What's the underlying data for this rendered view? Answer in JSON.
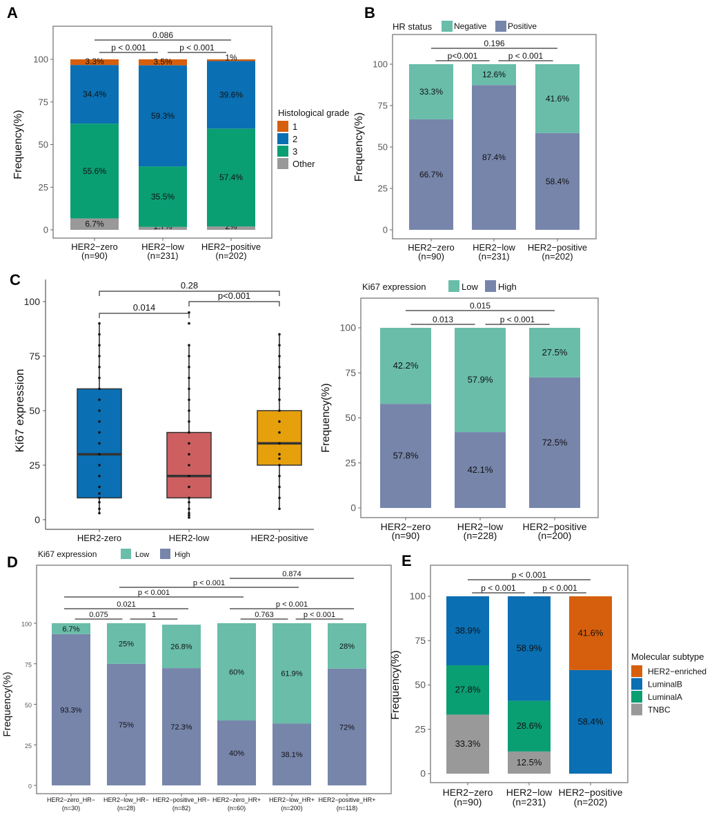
{
  "panels": {
    "A": {
      "letter": "A"
    },
    "B": {
      "letter": "B"
    },
    "C": {
      "letter": "C"
    },
    "D": {
      "letter": "D"
    },
    "E": {
      "letter": "E"
    }
  },
  "chart_data": [
    {
      "id": "A",
      "type": "bar",
      "stacked": true,
      "title": "",
      "xlabel": "",
      "ylabel": "Frequency(%)",
      "ylim": [
        0,
        100
      ],
      "yticks": [
        0,
        25,
        50,
        75,
        100
      ],
      "categories": [
        "HER2−zero",
        "HER2−low",
        "HER2−positive"
      ],
      "category_n": [
        "(n=90)",
        "(n=231)",
        "(n=202)"
      ],
      "legend_title": "Histological grade",
      "legend_position": "right",
      "series": [
        {
          "name": "Other",
          "color": "#999999",
          "values": [
            6.7,
            1.7,
            2.0
          ],
          "labels": [
            "6.7%",
            "1.7%",
            "2%"
          ]
        },
        {
          "name": "3",
          "color": "#0a9e73",
          "values": [
            55.6,
            35.5,
            57.4
          ],
          "labels": [
            "55.6%",
            "35.5%",
            "57.4%"
          ]
        },
        {
          "name": "2",
          "color": "#0a6fb3",
          "values": [
            34.4,
            59.3,
            39.6
          ],
          "labels": [
            "34.4%",
            "59.3%",
            "39.6%"
          ]
        },
        {
          "name": "1",
          "color": "#d65f0e",
          "values": [
            3.3,
            3.5,
            1.0
          ],
          "labels": [
            "3.3%",
            "3.5%",
            "1%"
          ]
        }
      ],
      "legend_order": [
        "1",
        "2",
        "3",
        "Other"
      ],
      "comparisons": [
        {
          "from": 0,
          "to": 2,
          "label": "0.086",
          "level": 2
        },
        {
          "from": 0,
          "to": 1,
          "label": "p < 0.001",
          "level": 1
        },
        {
          "from": 1,
          "to": 2,
          "label": "p < 0.001",
          "level": 1
        }
      ]
    },
    {
      "id": "B",
      "type": "bar",
      "stacked": true,
      "ylabel": "Frequency(%)",
      "ylim": [
        0,
        100
      ],
      "yticks": [
        0,
        25,
        50,
        75,
        100
      ],
      "categories": [
        "HER2−zero",
        "HER2−low",
        "HER2−positive"
      ],
      "category_n": [
        "(n=90)",
        "(n=231)",
        "(n=202)"
      ],
      "legend_title": "HR status",
      "legend_position": "top",
      "series": [
        {
          "name": "Positive",
          "color": "#7785ab",
          "values": [
            66.7,
            87.4,
            58.4
          ],
          "labels": [
            "66.7%",
            "87.4%",
            "58.4%"
          ]
        },
        {
          "name": "Negative",
          "color": "#69bda9",
          "values": [
            33.3,
            12.6,
            41.6
          ],
          "labels": [
            "33.3%",
            "12.6%",
            "41.6%"
          ]
        }
      ],
      "legend_order": [
        "Negative",
        "Positive"
      ],
      "comparisons": [
        {
          "from": 0,
          "to": 2,
          "label": "0.196",
          "level": 2
        },
        {
          "from": 0,
          "to": 1,
          "label": "p<0.001",
          "level": 1
        },
        {
          "from": 1,
          "to": 2,
          "label": "p < 0.001",
          "level": 1
        }
      ]
    },
    {
      "id": "C-box",
      "type": "boxplot",
      "ylabel": "Ki67 expression",
      "ylim": [
        0,
        100
      ],
      "yticks": [
        0,
        25,
        50,
        75,
        100
      ],
      "categories": [
        "HER2-zero",
        "HER2-low",
        "HER2-positive"
      ],
      "boxes": [
        {
          "name": "HER2-zero",
          "color": "#0a6fb3",
          "q1": 10,
          "median": 30,
          "q3": 60,
          "whisker_low": 3,
          "whisker_high": 90,
          "points": [
            3,
            5,
            8,
            10,
            12,
            15,
            20,
            25,
            30,
            35,
            40,
            45,
            50,
            55,
            60,
            65,
            70,
            75,
            80,
            85,
            90
          ]
        },
        {
          "name": "HER2-low",
          "color": "#cd5f60",
          "q1": 10,
          "median": 20,
          "q3": 40,
          "whisker_low": 1,
          "whisker_high": 80,
          "points": [
            1,
            2,
            3,
            5,
            8,
            10,
            15,
            20,
            25,
            30,
            35,
            40,
            45,
            50,
            55,
            60,
            65,
            70,
            75,
            80,
            90,
            95
          ]
        },
        {
          "name": "HER2-positive",
          "color": "#e6a00c",
          "q1": 25,
          "median": 35,
          "q3": 50,
          "whisker_low": 5,
          "whisker_high": 85,
          "points": [
            5,
            10,
            15,
            20,
            25,
            28,
            30,
            35,
            40,
            45,
            50,
            55,
            60,
            65,
            70,
            75,
            80,
            85
          ]
        }
      ],
      "comparisons": [
        {
          "from": 0,
          "to": 2,
          "label": "0.28",
          "level": 3
        },
        {
          "from": 1,
          "to": 2,
          "label": "p<0.001",
          "level": 2
        },
        {
          "from": 0,
          "to": 1,
          "label": "0.014",
          "level": 1
        }
      ]
    },
    {
      "id": "C-bar",
      "type": "bar",
      "stacked": true,
      "ylabel": "Frequency(%)",
      "ylim": [
        0,
        100
      ],
      "yticks": [
        0,
        25,
        50,
        75,
        100
      ],
      "categories": [
        "HER2−zero",
        "HER2−low",
        "HER2−positive"
      ],
      "category_n": [
        "(n=90)",
        "(n=228)",
        "(n=200)"
      ],
      "legend_title": "Ki67 expression",
      "legend_position": "top",
      "series": [
        {
          "name": "High",
          "color": "#7785ab",
          "values": [
            57.8,
            42.1,
            72.5
          ],
          "labels": [
            "57.8%",
            "42.1%",
            "72.5%"
          ]
        },
        {
          "name": "Low",
          "color": "#69bda9",
          "values": [
            42.2,
            57.9,
            27.5
          ],
          "labels": [
            "42.2%",
            "57.9%",
            "27.5%"
          ]
        }
      ],
      "legend_order": [
        "Low",
        "High"
      ],
      "comparisons": [
        {
          "from": 0,
          "to": 2,
          "label": "0.015",
          "level": 2
        },
        {
          "from": 0,
          "to": 1,
          "label": "0.013",
          "level": 1
        },
        {
          "from": 1,
          "to": 2,
          "label": "p < 0.001",
          "level": 1
        }
      ]
    },
    {
      "id": "D",
      "type": "bar",
      "stacked": true,
      "ylabel": "Frequency(%)",
      "ylim": [
        0,
        100
      ],
      "yticks": [
        0,
        25,
        50,
        75,
        100
      ],
      "categories": [
        "HER2−zero_HR−",
        "HER2−low_HR−",
        "HER2−positive_HR−",
        "HER2−zero_HR+",
        "HER2−low_HR+",
        "HER2−positive_HR+"
      ],
      "category_n": [
        "(n=30)",
        "(n=28)",
        "(n=82)",
        "(n=60)",
        "(n=200)",
        "(n=118)"
      ],
      "legend_title": "Ki67 expression",
      "legend_position": "top",
      "series": [
        {
          "name": "High",
          "color": "#7785ab",
          "values": [
            93.3,
            75,
            72.3,
            40,
            38.1,
            72
          ],
          "labels": [
            "93.3%",
            "75%",
            "72.3%",
            "40%",
            "38.1%",
            "72%"
          ]
        },
        {
          "name": "Low",
          "color": "#69bda9",
          "values": [
            6.7,
            25,
            26.8,
            60,
            61.9,
            28
          ],
          "labels": [
            "6.7%",
            "25%",
            "26.8%",
            "60%",
            "61.9%",
            "28%"
          ]
        }
      ],
      "legend_order": [
        "Low",
        "High"
      ],
      "comparisons": [
        {
          "from": 3,
          "to": 5,
          "label": "0.874",
          "level": 6
        },
        {
          "from": 1,
          "to": 4,
          "label": "p < 0.001",
          "level": 5
        },
        {
          "from": 0,
          "to": 3,
          "label": "p < 0.001",
          "level": 4
        },
        {
          "from": 0,
          "to": 2,
          "label": "0.021",
          "level": 3
        },
        {
          "from": 3,
          "to": 5,
          "label": "p < 0.001",
          "level": 3
        },
        {
          "from": 0,
          "to": 1,
          "label": "0.075",
          "level": 2
        },
        {
          "from": 1,
          "to": 2,
          "label": "1",
          "level": 2
        },
        {
          "from": 3,
          "to": 4,
          "label": "0.763",
          "level": 2
        },
        {
          "from": 4,
          "to": 5,
          "label": "p < 0.001",
          "level": 2
        }
      ]
    },
    {
      "id": "E",
      "type": "bar",
      "stacked": true,
      "ylabel": "Frequency(%)",
      "ylim": [
        0,
        100
      ],
      "yticks": [
        0,
        25,
        50,
        75,
        100
      ],
      "categories": [
        "HER2−zero",
        "HER2−low",
        "HER2−positive"
      ],
      "category_n": [
        "(n=90)",
        "(n=231)",
        "(n=202)"
      ],
      "legend_title": "Molecular subtype",
      "legend_position": "right",
      "series": [
        {
          "name": "TNBC",
          "color": "#999999",
          "values": [
            33.3,
            12.5,
            0
          ],
          "labels": [
            "33.3%",
            "12.5%",
            ""
          ]
        },
        {
          "name": "LuminalA",
          "color": "#0a9e73",
          "values": [
            27.8,
            28.6,
            0
          ],
          "labels": [
            "27.8%",
            "28.6%",
            ""
          ]
        },
        {
          "name": "LuminalB",
          "color": "#0a6fb3",
          "values": [
            38.9,
            58.9,
            58.4
          ],
          "labels": [
            "38.9%",
            "58.9%",
            "58.4%"
          ]
        },
        {
          "name": "HER2-enriched",
          "color": "#d65f0e",
          "values": [
            0,
            0,
            41.6
          ],
          "labels": [
            "",
            "",
            "41.6%"
          ]
        }
      ],
      "legend_order": [
        "HER2-enriched",
        "LuminalB",
        "LuminalA",
        "TNBC"
      ],
      "legend_labels": [
        "HER2−enriched",
        "LuminalB",
        "LuminalA",
        "TNBC"
      ],
      "comparisons": [
        {
          "from": 0,
          "to": 2,
          "label": "p < 0.001",
          "level": 2
        },
        {
          "from": 0,
          "to": 1,
          "label": "p < 0.001",
          "level": 1
        },
        {
          "from": 1,
          "to": 2,
          "label": "p < 0.001",
          "level": 1
        }
      ]
    }
  ]
}
